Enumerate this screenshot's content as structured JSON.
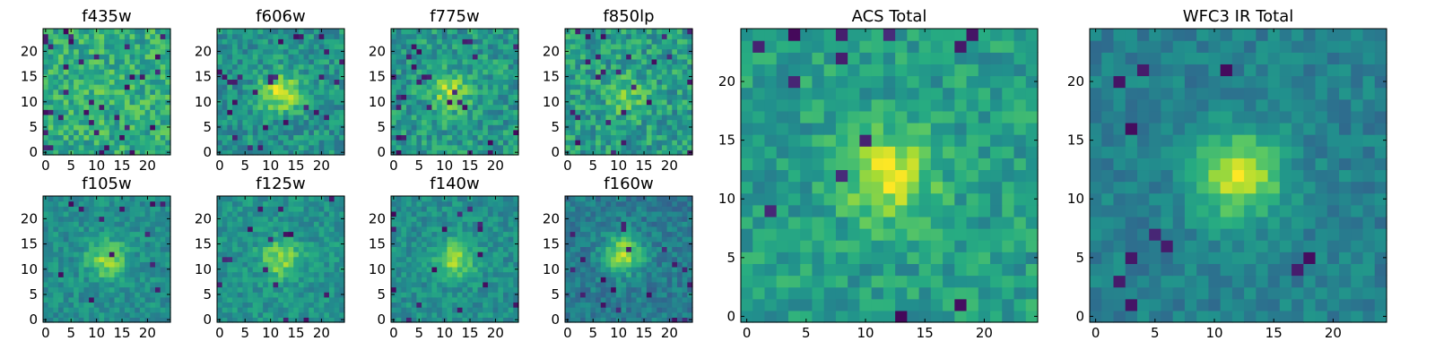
{
  "chart_data": {
    "type": "heatmap",
    "colormap": "viridis",
    "grid": false,
    "panels": [
      {
        "title": "f435w",
        "xticks": [
          "0",
          "5",
          "10",
          "15",
          "20"
        ],
        "yticks": [
          "0",
          "5",
          "10",
          "15",
          "20"
        ],
        "xlim": [
          0,
          25
        ],
        "ylim": [
          0,
          25
        ],
        "nx": 25,
        "ny": 25,
        "peak": [
          12,
          12
        ],
        "signal": 0.05,
        "noise": 0.34,
        "base": 0.62,
        "seed": 11,
        "outliers": 0.05
      },
      {
        "title": "f606w",
        "xticks": [
          "0",
          "5",
          "10",
          "15",
          "20"
        ],
        "yticks": [
          "0",
          "5",
          "10",
          "15",
          "20"
        ],
        "xlim": [
          0,
          25
        ],
        "ylim": [
          0,
          25
        ],
        "nx": 25,
        "ny": 25,
        "peak": [
          12,
          12
        ],
        "signal": 0.42,
        "noise": 0.3,
        "base": 0.52,
        "seed": 23,
        "outliers": 0.04
      },
      {
        "title": "f775w",
        "xticks": [
          "0",
          "5",
          "10",
          "15",
          "20"
        ],
        "yticks": [
          "0",
          "5",
          "10",
          "15",
          "20"
        ],
        "xlim": [
          0,
          25
        ],
        "ylim": [
          0,
          25
        ],
        "nx": 25,
        "ny": 25,
        "peak": [
          11,
          12
        ],
        "signal": 0.32,
        "noise": 0.32,
        "base": 0.54,
        "seed": 37,
        "outliers": 0.05
      },
      {
        "title": "f850lp",
        "xticks": [
          "0",
          "5",
          "10",
          "15",
          "20"
        ],
        "yticks": [
          "0",
          "5",
          "10",
          "15",
          "20"
        ],
        "xlim": [
          0,
          25
        ],
        "ylim": [
          0,
          25
        ],
        "nx": 25,
        "ny": 25,
        "peak": [
          12,
          11
        ],
        "signal": 0.2,
        "noise": 0.34,
        "base": 0.56,
        "seed": 41,
        "outliers": 0.06
      },
      {
        "title": "f105w",
        "xticks": [
          "0",
          "5",
          "10",
          "15",
          "20"
        ],
        "yticks": [
          "0",
          "5",
          "10",
          "15",
          "20"
        ],
        "xlim": [
          0,
          25
        ],
        "ylim": [
          0,
          25
        ],
        "nx": 25,
        "ny": 25,
        "peak": [
          12,
          12
        ],
        "signal": 0.34,
        "noise": 0.22,
        "base": 0.5,
        "seed": 53,
        "outliers": 0.02
      },
      {
        "title": "f125w",
        "xticks": [
          "0",
          "5",
          "10",
          "15",
          "20"
        ],
        "yticks": [
          "0",
          "5",
          "10",
          "15",
          "20"
        ],
        "xlim": [
          0,
          25
        ],
        "ylim": [
          0,
          25
        ],
        "nx": 25,
        "ny": 25,
        "peak": [
          12,
          12
        ],
        "signal": 0.32,
        "noise": 0.22,
        "base": 0.52,
        "seed": 67,
        "outliers": 0.02
      },
      {
        "title": "f140w",
        "xticks": [
          "0",
          "5",
          "10",
          "15",
          "20"
        ],
        "yticks": [
          "0",
          "5",
          "10",
          "15",
          "20"
        ],
        "xlim": [
          0,
          25
        ],
        "ylim": [
          0,
          25
        ],
        "nx": 25,
        "ny": 25,
        "peak": [
          12,
          12
        ],
        "signal": 0.36,
        "noise": 0.22,
        "base": 0.5,
        "seed": 79,
        "outliers": 0.03
      },
      {
        "title": "f160w",
        "xticks": [
          "0",
          "5",
          "10",
          "15",
          "20"
        ],
        "yticks": [
          "0",
          "5",
          "10",
          "15",
          "20"
        ],
        "xlim": [
          0,
          25
        ],
        "ylim": [
          0,
          25
        ],
        "nx": 25,
        "ny": 25,
        "peak": [
          11,
          13
        ],
        "signal": 0.46,
        "noise": 0.22,
        "base": 0.42,
        "seed": 83,
        "outliers": 0.03
      },
      {
        "title": "ACS Total",
        "xticks": [
          "0",
          "5",
          "10",
          "15",
          "20"
        ],
        "yticks": [
          "0",
          "5",
          "10",
          "15",
          "20"
        ],
        "xlim": [
          0,
          25
        ],
        "ylim": [
          0,
          25
        ],
        "nx": 25,
        "ny": 25,
        "peak": [
          12,
          12
        ],
        "signal": 0.38,
        "noise": 0.26,
        "base": 0.56,
        "seed": 97,
        "outliers": 0.03
      },
      {
        "title": "WFC3 IR Total",
        "xticks": [
          "0",
          "5",
          "10",
          "15",
          "20"
        ],
        "yticks": [
          "0",
          "5",
          "10",
          "15",
          "20"
        ],
        "xlim": [
          0,
          25
        ],
        "ylim": [
          0,
          25
        ],
        "nx": 25,
        "ny": 25,
        "peak": [
          12,
          12
        ],
        "signal": 0.48,
        "noise": 0.18,
        "base": 0.44,
        "seed": 109,
        "outliers": 0.02
      }
    ]
  }
}
